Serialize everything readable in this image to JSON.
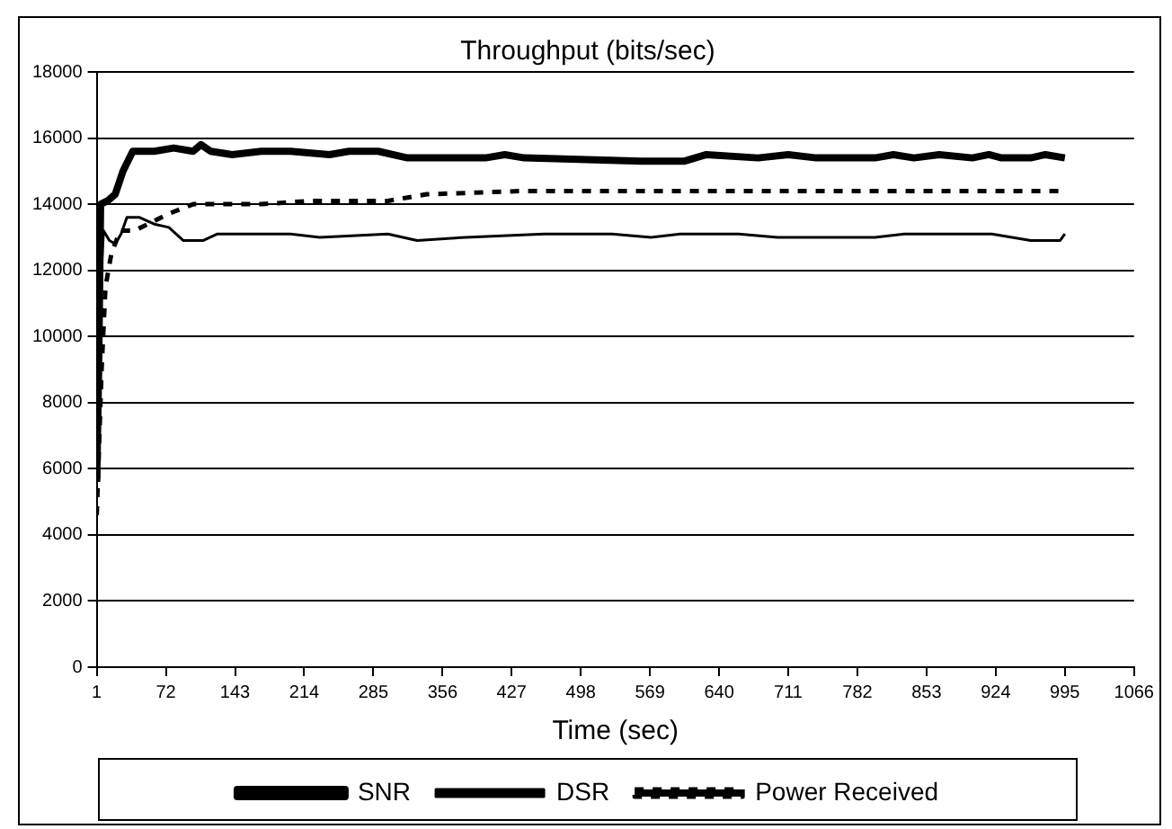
{
  "chart_data": {
    "type": "line",
    "title": "Throughput (bits/sec)",
    "xlabel": "Time (sec)",
    "xlim": [
      1,
      1066
    ],
    "xticks": [
      1,
      72,
      143,
      214,
      285,
      356,
      427,
      498,
      569,
      640,
      711,
      782,
      853,
      924,
      995,
      1066
    ],
    "ylim": [
      0,
      18000
    ],
    "yticks": [
      0,
      2000,
      4000,
      6000,
      8000,
      10000,
      12000,
      14000,
      16000,
      18000
    ],
    "grid": "y",
    "legend": "bottom",
    "marker": "none",
    "series": [
      {
        "name": "SNR",
        "color": "#000000",
        "line_style": "solid",
        "x": [
          1,
          3,
          5,
          12,
          20,
          28,
          38,
          60,
          80,
          100,
          108,
          118,
          140,
          170,
          200,
          240,
          260,
          290,
          320,
          400,
          420,
          440,
          560,
          604,
          627,
          680,
          711,
          740,
          800,
          819,
          840,
          866,
          900,
          917,
          930,
          960,
          975,
          995
        ],
        "values": [
          5600,
          9000,
          14000,
          14100,
          14300,
          15000,
          15600,
          15600,
          15700,
          15600,
          15800,
          15600,
          15500,
          15600,
          15600,
          15500,
          15600,
          15600,
          15400,
          15400,
          15500,
          15400,
          15300,
          15300,
          15500,
          15400,
          15500,
          15400,
          15400,
          15500,
          15400,
          15500,
          15400,
          15500,
          15400,
          15400,
          15500,
          15400
        ]
      },
      {
        "name": "DSR",
        "color": "#000000",
        "line_style": "solid",
        "x": [
          1,
          4,
          8,
          14,
          20,
          26,
          32,
          45,
          60,
          75,
          90,
          110,
          125,
          200,
          230,
          300,
          330,
          380,
          460,
          530,
          570,
          600,
          660,
          700,
          800,
          830,
          920,
          960,
          990,
          995
        ],
        "values": [
          5800,
          11000,
          13200,
          12900,
          12800,
          13100,
          13600,
          13600,
          13400,
          13300,
          12900,
          12900,
          13100,
          13100,
          13000,
          13100,
          12900,
          13000,
          13100,
          13100,
          13000,
          13100,
          13100,
          13000,
          13000,
          13100,
          13100,
          12900,
          12900,
          13100
        ]
      },
      {
        "name": "Power Received",
        "color": "#000000",
        "line_style": "dashed",
        "x": [
          1,
          6,
          10,
          16,
          25,
          40,
          74,
          100,
          170,
          220,
          300,
          340,
          440,
          995
        ],
        "values": [
          4600,
          9000,
          11500,
          12500,
          13200,
          13200,
          13700,
          14000,
          14000,
          14100,
          14100,
          14300,
          14400,
          14400
        ]
      }
    ]
  }
}
